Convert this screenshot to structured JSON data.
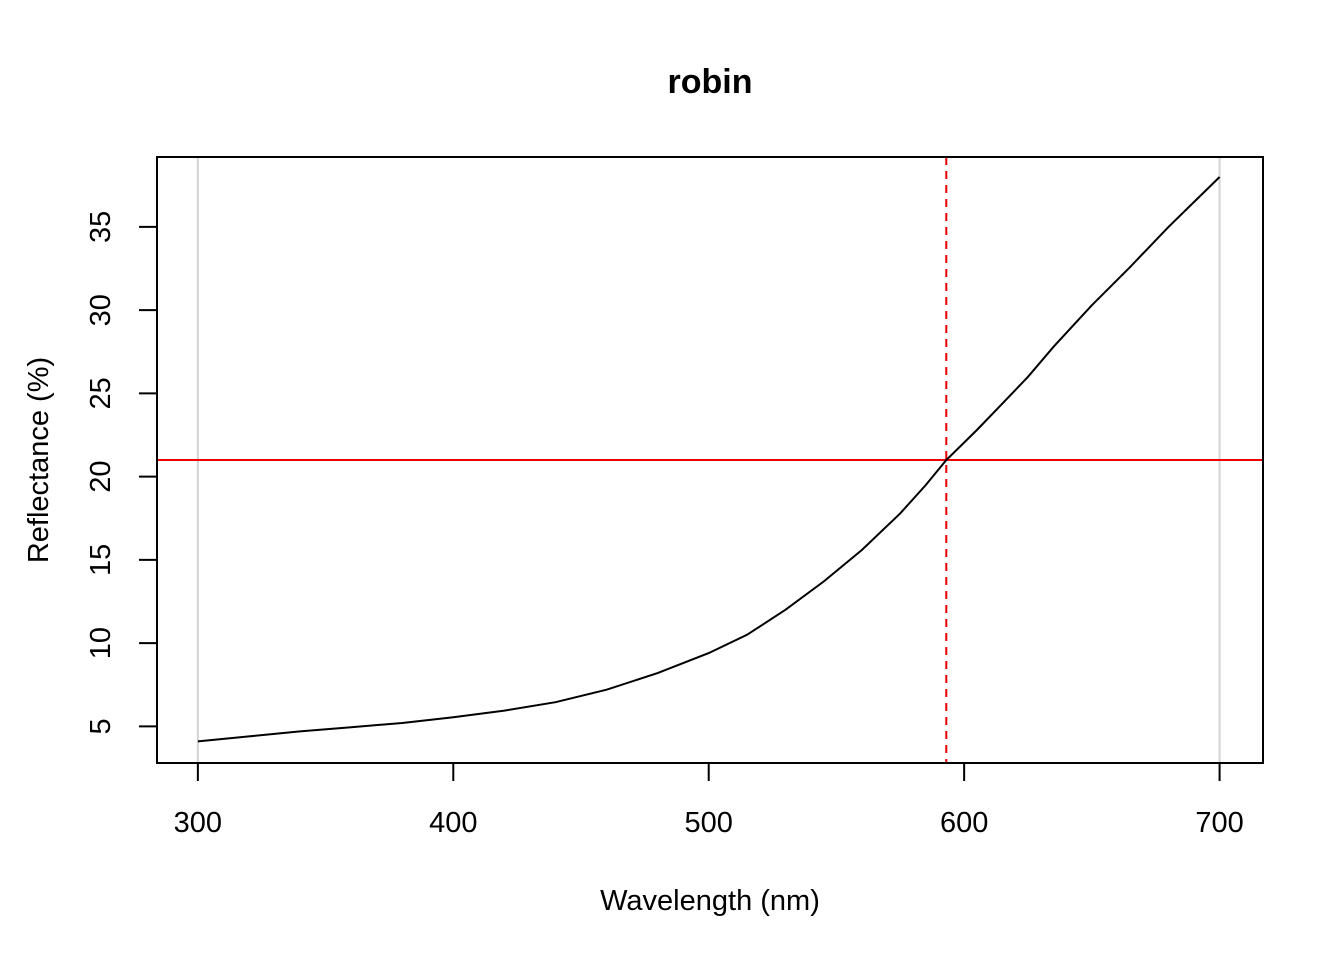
{
  "chart_data": {
    "type": "line",
    "title": "robin",
    "xlabel": "Wavelength (nm)",
    "ylabel": "Reflectance (%)",
    "xlim": [
      284,
      717
    ],
    "ylim": [
      2.8,
      39.2
    ],
    "x_ticks": [
      300,
      400,
      500,
      600,
      700
    ],
    "y_ticks": [
      5,
      10,
      15,
      20,
      25,
      30,
      35
    ],
    "grid": false,
    "series": [
      {
        "color": "#000000",
        "points": [
          [
            300,
            4.1
          ],
          [
            320,
            4.4
          ],
          [
            340,
            4.7
          ],
          [
            360,
            4.95
          ],
          [
            380,
            5.2
          ],
          [
            400,
            5.55
          ],
          [
            420,
            5.95
          ],
          [
            440,
            6.45
          ],
          [
            460,
            7.2
          ],
          [
            480,
            8.2
          ],
          [
            500,
            9.4
          ],
          [
            515,
            10.5
          ],
          [
            530,
            12.0
          ],
          [
            545,
            13.7
          ],
          [
            560,
            15.6
          ],
          [
            575,
            17.8
          ],
          [
            585,
            19.5
          ],
          [
            593,
            21.0
          ],
          [
            605,
            22.8
          ],
          [
            615,
            24.4
          ],
          [
            625,
            26.0
          ],
          [
            635,
            27.8
          ],
          [
            650,
            30.3
          ],
          [
            665,
            32.6
          ],
          [
            680,
            35.0
          ],
          [
            690,
            36.5
          ],
          [
            700,
            38.0
          ]
        ]
      }
    ],
    "annotations": {
      "horizontal_line": {
        "y": 21.0,
        "color": "#ee0000",
        "style": "solid"
      },
      "vertical_line": {
        "x": 593,
        "color": "#ee0000",
        "style": "dashed"
      },
      "boundary_lines": {
        "x": [
          300,
          700
        ],
        "color": "#d3d3d3",
        "style": "solid"
      }
    }
  }
}
